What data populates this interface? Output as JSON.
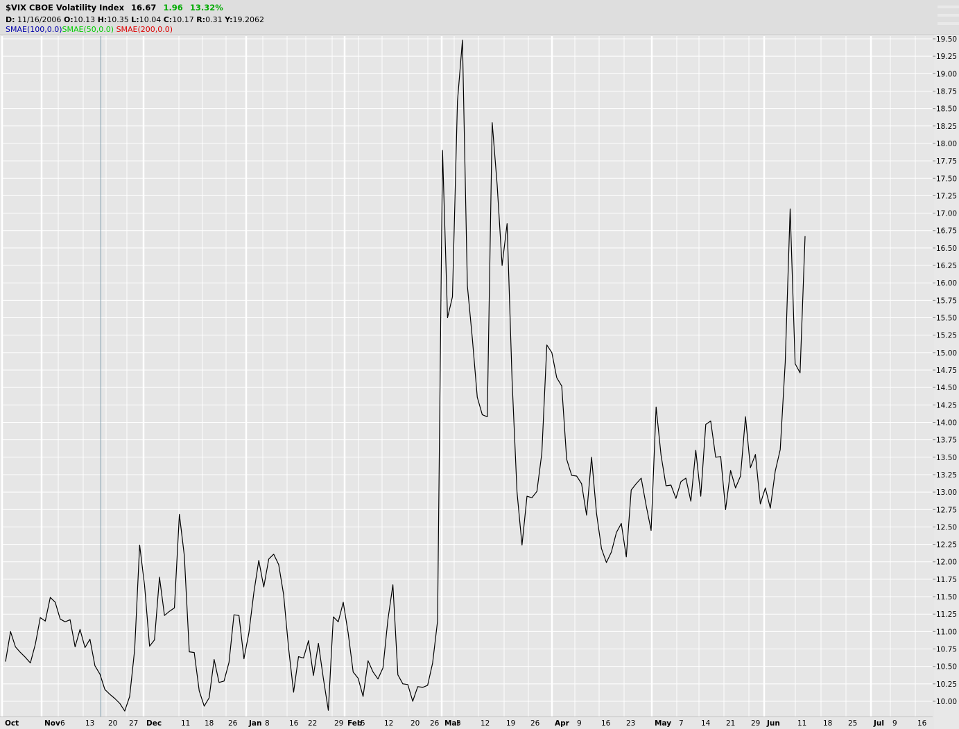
{
  "header": {
    "symbol_line": "$VIX CBOE Volatility Index",
    "last": "16.67",
    "change": "1.96",
    "change_pct": "13.32%",
    "change_color": "#00aa00",
    "date_label": "D:",
    "date_value": "11/16/2006",
    "open_label": "O:",
    "open_value": "10.13",
    "high_label": "H:",
    "high_value": "10.35",
    "low_label": "L:",
    "low_value": "10.04",
    "close_label": "C:",
    "close_value": "10.17",
    "range_label": "R:",
    "range_value": "0.31",
    "y_label": "Y:",
    "y_value": "19.2062"
  },
  "indicators": [
    {
      "label": "SMAE(100,0.0)",
      "color": "#0000aa"
    },
    {
      "label": "SMAE(50,0.0)",
      "color": "#00cc00"
    },
    {
      "label": "SMAE(200,0.0)",
      "color": "#dd0000"
    }
  ],
  "chart_data": {
    "type": "line",
    "series": [
      {
        "values": [
          10.57,
          11.0,
          10.78,
          10.7,
          10.63,
          10.55,
          10.82,
          11.2,
          11.15,
          11.49,
          11.42,
          11.18,
          11.14,
          11.17,
          10.78,
          11.03,
          10.77,
          10.89,
          10.51,
          10.39,
          10.17,
          10.1,
          10.04,
          9.97,
          9.86,
          10.07,
          10.74,
          12.24,
          11.66,
          10.79,
          10.88,
          11.78,
          11.23,
          11.29,
          11.34,
          12.68,
          12.09,
          10.71,
          10.7,
          10.15,
          9.93,
          10.05,
          10.6,
          10.27,
          10.29,
          10.56,
          11.24,
          11.23,
          10.61,
          10.98,
          11.56,
          12.02,
          11.64,
          12.04,
          12.11,
          11.96,
          11.53,
          10.76,
          10.13,
          10.64,
          10.62,
          10.87,
          10.37,
          10.83,
          10.33,
          9.87,
          11.21,
          11.14,
          11.42,
          10.98,
          10.42,
          10.33,
          10.07,
          10.58,
          10.42,
          10.32,
          10.48,
          11.17,
          11.67,
          10.38,
          10.25,
          10.24,
          10.0,
          10.21,
          10.2,
          10.23,
          10.55,
          11.15,
          17.9,
          15.5,
          15.8,
          18.6,
          19.48,
          15.96,
          15.2,
          14.36,
          14.11,
          14.08,
          18.3,
          17.4,
          16.25,
          16.85,
          14.6,
          13.0,
          12.24,
          12.94,
          12.92,
          13.01,
          13.56,
          15.11,
          15.0,
          14.64,
          14.52,
          13.47,
          13.24,
          13.23,
          13.12,
          12.67,
          13.5,
          12.7,
          12.19,
          11.99,
          12.14,
          12.42,
          12.55,
          12.07,
          13.03,
          13.12,
          13.2,
          12.81,
          12.45,
          14.22,
          13.53,
          13.09,
          13.1,
          12.91,
          13.15,
          13.2,
          12.87,
          13.6,
          12.94,
          13.97,
          14.02,
          13.5,
          13.51,
          12.75,
          13.31,
          13.06,
          13.23,
          14.08,
          13.35,
          13.54,
          12.83,
          13.06,
          12.77,
          13.3,
          13.61,
          14.86,
          17.06,
          14.84,
          14.71,
          16.67
        ]
      }
    ],
    "ylim": [
      9.8,
      19.6
    ],
    "y_ticks": [
      "19.50",
      "19.25",
      "19.00",
      "18.75",
      "18.50",
      "18.25",
      "18.00",
      "17.75",
      "17.50",
      "17.25",
      "17.00",
      "16.75",
      "16.50",
      "16.25",
      "16.00",
      "15.75",
      "15.50",
      "15.25",
      "15.00",
      "14.75",
      "14.50",
      "14.25",
      "14.00",
      "13.75",
      "13.50",
      "13.25",
      "13.00",
      "12.75",
      "12.50",
      "12.25",
      "12.00",
      "11.75",
      "11.50",
      "11.25",
      "11.00",
      "10.75",
      "10.50",
      "10.25",
      "10.00"
    ],
    "y_axis_side": "right",
    "grid": true,
    "x_ticks": [
      {
        "label": "Oct",
        "month": true
      },
      {
        "label": "Nov",
        "month": true
      },
      {
        "label": "6",
        "month": false
      },
      {
        "label": "13",
        "month": false
      },
      {
        "label": "20",
        "month": false
      },
      {
        "label": "27",
        "month": false
      },
      {
        "label": "Dec",
        "month": true
      },
      {
        "label": "11",
        "month": false
      },
      {
        "label": "18",
        "month": false
      },
      {
        "label": "26",
        "month": false
      },
      {
        "label": "Jan",
        "month": true
      },
      {
        "label": "8",
        "month": false
      },
      {
        "label": "16",
        "month": false
      },
      {
        "label": "22",
        "month": false
      },
      {
        "label": "29",
        "month": false
      },
      {
        "label": "Feb",
        "month": true
      },
      {
        "label": "5",
        "month": false
      },
      {
        "label": "12",
        "month": false
      },
      {
        "label": "20",
        "month": false
      },
      {
        "label": "26",
        "month": false
      },
      {
        "label": "Mar",
        "month": true
      },
      {
        "label": "5",
        "month": false
      },
      {
        "label": "12",
        "month": false
      },
      {
        "label": "19",
        "month": false
      },
      {
        "label": "26",
        "month": false
      },
      {
        "label": "Apr",
        "month": true
      },
      {
        "label": "9",
        "month": false
      },
      {
        "label": "16",
        "month": false
      },
      {
        "label": "23",
        "month": false
      },
      {
        "label": "May",
        "month": true
      },
      {
        "label": "7",
        "month": false
      },
      {
        "label": "14",
        "month": false
      },
      {
        "label": "21",
        "month": false
      },
      {
        "label": "29",
        "month": false
      },
      {
        "label": "Jun",
        "month": true
      },
      {
        "label": "11",
        "month": false
      },
      {
        "label": "18",
        "month": false
      },
      {
        "label": "25",
        "month": false
      },
      {
        "label": "Jul",
        "month": true
      },
      {
        "label": "9",
        "month": false
      },
      {
        "label": "16",
        "month": false
      }
    ],
    "marker_line_color": "#7a9aaa",
    "line_color": "#000000"
  }
}
